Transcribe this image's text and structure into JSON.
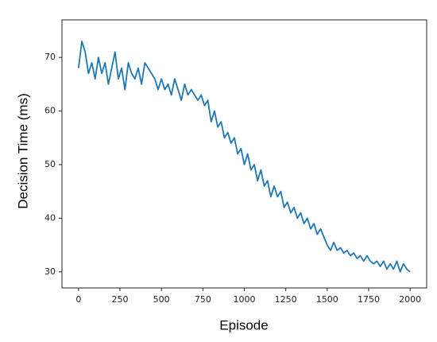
{
  "chart_data": {
    "type": "line",
    "xlabel": "Episode",
    "ylabel": "Decision Time (ms)",
    "x": [
      0,
      20,
      40,
      60,
      80,
      100,
      120,
      140,
      160,
      180,
      200,
      220,
      240,
      260,
      280,
      300,
      320,
      340,
      360,
      380,
      400,
      420,
      440,
      460,
      480,
      500,
      520,
      540,
      560,
      580,
      600,
      620,
      640,
      660,
      680,
      700,
      720,
      740,
      760,
      780,
      800,
      820,
      840,
      860,
      880,
      900,
      920,
      940,
      960,
      980,
      1000,
      1020,
      1040,
      1060,
      1080,
      1100,
      1120,
      1140,
      1160,
      1180,
      1200,
      1220,
      1240,
      1260,
      1280,
      1300,
      1320,
      1340,
      1360,
      1380,
      1400,
      1420,
      1440,
      1460,
      1480,
      1500,
      1520,
      1540,
      1560,
      1580,
      1600,
      1620,
      1640,
      1660,
      1680,
      1700,
      1720,
      1740,
      1760,
      1780,
      1800,
      1820,
      1840,
      1860,
      1880,
      1900,
      1920,
      1940,
      1960,
      1980,
      2000
    ],
    "series": [
      {
        "name": "Decision Time",
        "color": "#1f77b4",
        "values": [
          68,
          73,
          71,
          67,
          69,
          66,
          70,
          67,
          69,
          65,
          68,
          71,
          66,
          68,
          64,
          69,
          67,
          66,
          68,
          65,
          69,
          68,
          67,
          66,
          64,
          66,
          64,
          65,
          63,
          66,
          64,
          62,
          65,
          63,
          64,
          63,
          62,
          63,
          61,
          62,
          58,
          60,
          57,
          58,
          55,
          56,
          54,
          55,
          52,
          53,
          50,
          52,
          49,
          50,
          47,
          49,
          46,
          47,
          44,
          46,
          44,
          45,
          42,
          43,
          41,
          42,
          40,
          41,
          39,
          40,
          38,
          39,
          37,
          38,
          36.5,
          35,
          34,
          35.5,
          34,
          34.5,
          33.5,
          34,
          33,
          33.5,
          32.5,
          33,
          32,
          33,
          32,
          31.5,
          32,
          31,
          32,
          30.5,
          31.5,
          30.5,
          32,
          30,
          31.5,
          30.5,
          30
        ]
      }
    ],
    "xlim": [
      -100,
      2100
    ],
    "ylim": [
      27,
      77
    ],
    "xticks": [
      0,
      250,
      500,
      750,
      1000,
      1250,
      1500,
      1750,
      2000
    ],
    "yticks": [
      30,
      40,
      50,
      60,
      70
    ],
    "grid": false
  }
}
